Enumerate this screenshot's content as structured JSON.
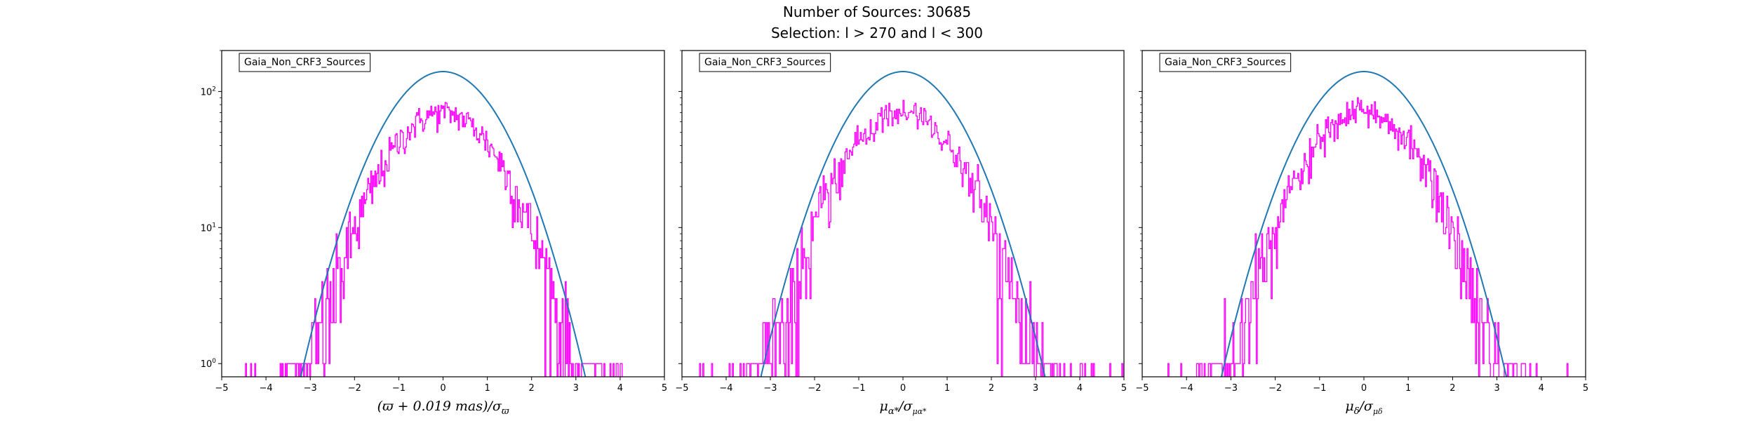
{
  "figure": {
    "title_line1": "Number of Sources: 30685",
    "title_line2": "Selection: l > 270 and l < 300"
  },
  "colors": {
    "histogram": "#ff00ff",
    "fit": "#1f77b4",
    "axes": "#000000"
  },
  "chart_data": [
    {
      "type": "histogram",
      "legend": "Gaia_Non_CRF3_Sources",
      "legend_position": "upper-left",
      "xlabel": "(ϖ + 0.019 mas)/σϖ",
      "xlabel_parts": {
        "main": "(ϖ + 0.019 ",
        "mas": "mas",
        "close": ")/σ",
        "sub": "ϖ"
      },
      "ylabel": "",
      "xlim": [
        -5,
        5
      ],
      "ylim": [
        0.8,
        200
      ],
      "yscale": "log",
      "xticks": [
        -5,
        -4,
        -3,
        -2,
        -1,
        0,
        1,
        2,
        3,
        4,
        5
      ],
      "yticks": [
        {
          "value": 1,
          "label": "10",
          "exp": "0"
        },
        {
          "value": 10,
          "label": "10",
          "exp": "1"
        },
        {
          "value": 100,
          "label": "10",
          "exp": "2"
        }
      ],
      "histogram": {
        "peak": 140,
        "center": 0.0,
        "sigma": 1.0,
        "range": [
          -4.9,
          4.3
        ],
        "bins": 400
      },
      "fit": {
        "type": "gaussian",
        "amplitude": 140,
        "mean": 0.0,
        "sigma": 1.0
      }
    },
    {
      "type": "histogram",
      "legend": "Gaia_Non_CRF3_Sources",
      "legend_position": "upper-left",
      "xlabel": "μα*/σμα*",
      "xlabel_parts": {
        "main": "μ",
        "sub1": "α*",
        "mid": "/σ",
        "sub2": "μα*"
      },
      "ylabel": "",
      "xlim": [
        -5,
        5
      ],
      "ylim": [
        0.8,
        200
      ],
      "yscale": "log",
      "xticks": [
        -5,
        -4,
        -3,
        -2,
        -1,
        0,
        1,
        2,
        3,
        4,
        5
      ],
      "yticks": [
        {
          "value": 1,
          "label": "",
          "exp": ""
        },
        {
          "value": 10,
          "label": "",
          "exp": ""
        },
        {
          "value": 100,
          "label": "",
          "exp": ""
        }
      ],
      "histogram": {
        "peak": 140,
        "center": 0.0,
        "sigma": 1.0,
        "range": [
          -4.9,
          5.0
        ],
        "bins": 400
      },
      "fit": {
        "type": "gaussian",
        "amplitude": 140,
        "mean": 0.0,
        "sigma": 1.0
      }
    },
    {
      "type": "histogram",
      "legend": "Gaia_Non_CRF3_Sources",
      "legend_position": "upper-left",
      "xlabel": "μδ/σμδ",
      "xlabel_parts": {
        "main": "μ",
        "sub1": "δ",
        "mid": "/σ",
        "sub2": "μδ"
      },
      "ylabel": "",
      "xlim": [
        -5,
        5
      ],
      "ylim": [
        0.8,
        200
      ],
      "yscale": "log",
      "xticks": [
        -5,
        -4,
        -3,
        -2,
        -1,
        0,
        1,
        2,
        3,
        4,
        5
      ],
      "yticks": [
        {
          "value": 1,
          "label": "",
          "exp": ""
        },
        {
          "value": 10,
          "label": "",
          "exp": ""
        },
        {
          "value": 100,
          "label": "",
          "exp": ""
        }
      ],
      "histogram": {
        "peak": 140,
        "center": 0.0,
        "sigma": 1.0,
        "range": [
          -4.9,
          4.7
        ],
        "bins": 400
      },
      "fit": {
        "type": "gaussian",
        "amplitude": 140,
        "mean": 0.0,
        "sigma": 1.0
      }
    }
  ]
}
